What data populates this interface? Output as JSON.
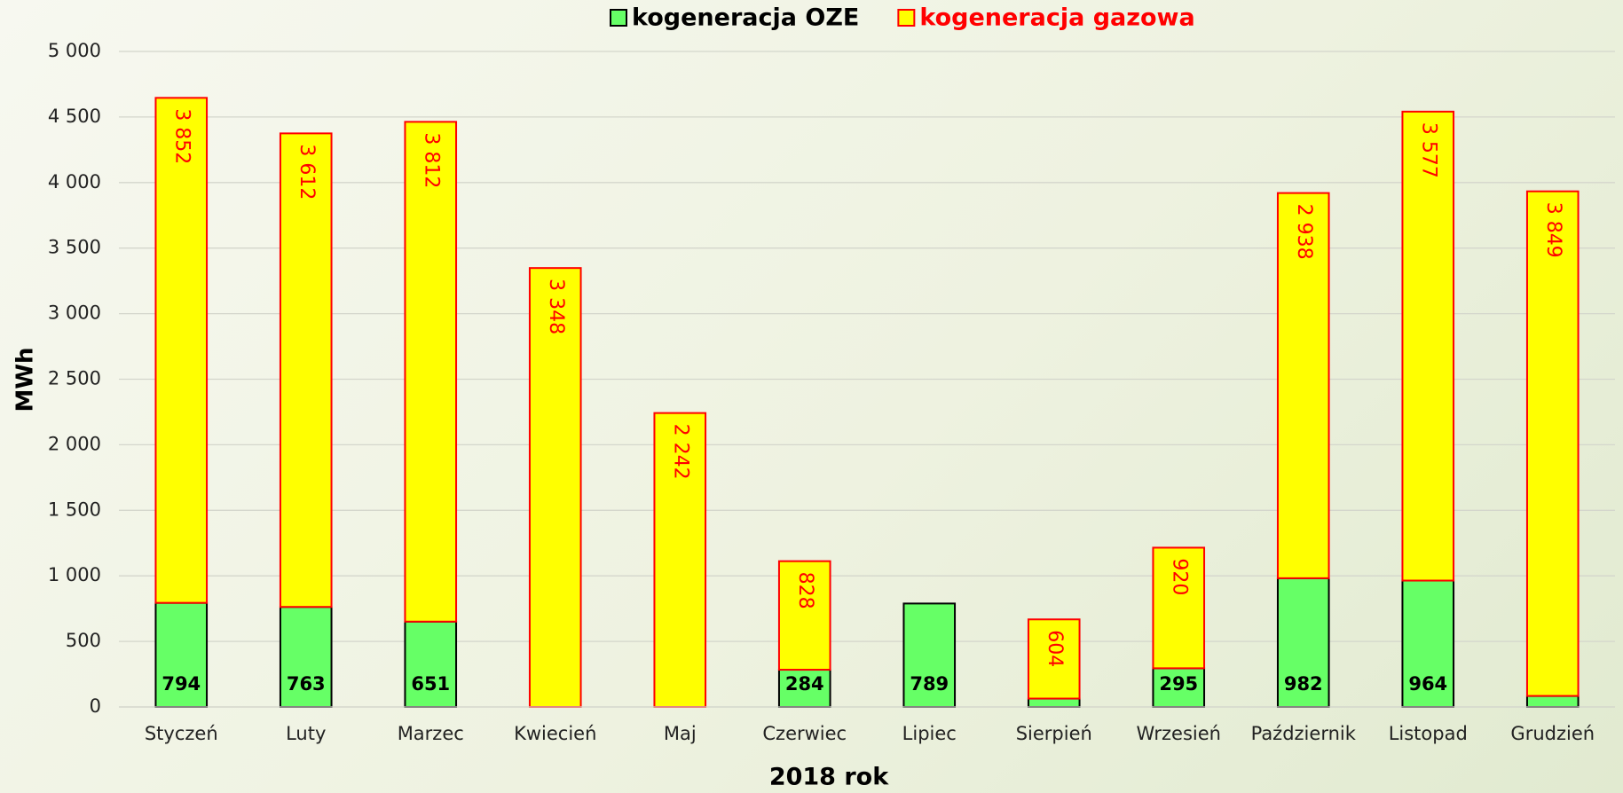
{
  "chart_data": {
    "type": "stacked_bar",
    "x_label": "2018 rok",
    "y_label": "MWh",
    "categories": [
      "Styczeń",
      "Luty",
      "Marzec",
      "Kwiecień",
      "Maj",
      "Czerwiec",
      "Lipiec",
      "Sierpień",
      "Wrzesień",
      "Październik",
      "Listopad",
      "Grudzień"
    ],
    "series": [
      {
        "name": "kogeneracja OZE",
        "color": "#66ff66",
        "edge": "#000000",
        "label_color": "#000000",
        "values": [
          794,
          763,
          651,
          null,
          null,
          284,
          789,
          64,
          295,
          982,
          964,
          84
        ]
      },
      {
        "name": "kogeneracja gazowa",
        "color": "#ffff00",
        "edge": "#ff0000",
        "label_color": "#ff0000",
        "values": [
          3852,
          3612,
          3812,
          3348,
          2242,
          828,
          null,
          604,
          920,
          2938,
          3577,
          3849
        ],
        "value_labels": [
          "3 852",
          "3 612",
          "3 812",
          "3 348",
          "2 242",
          "828",
          null,
          "604",
          "920",
          "2 938",
          "3 577",
          "3 849"
        ]
      }
    ],
    "ylim": [
      0,
      5000
    ],
    "yticks": [
      0,
      500,
      {
        "value": 1000,
        "label": "1 000"
      },
      {
        "value": 1500,
        "label": "1 500"
      },
      {
        "value": 2000,
        "label": "2 000"
      },
      {
        "value": 2500,
        "label": "2 500"
      },
      {
        "value": 3000,
        "label": "3 000"
      },
      {
        "value": 3500,
        "label": "3 500"
      },
      {
        "value": 4000,
        "label": "4 000"
      },
      {
        "value": 4500,
        "label": "4 500"
      },
      {
        "value": 5000,
        "label": "5 000"
      }
    ],
    "grid": true,
    "legend": "top"
  }
}
